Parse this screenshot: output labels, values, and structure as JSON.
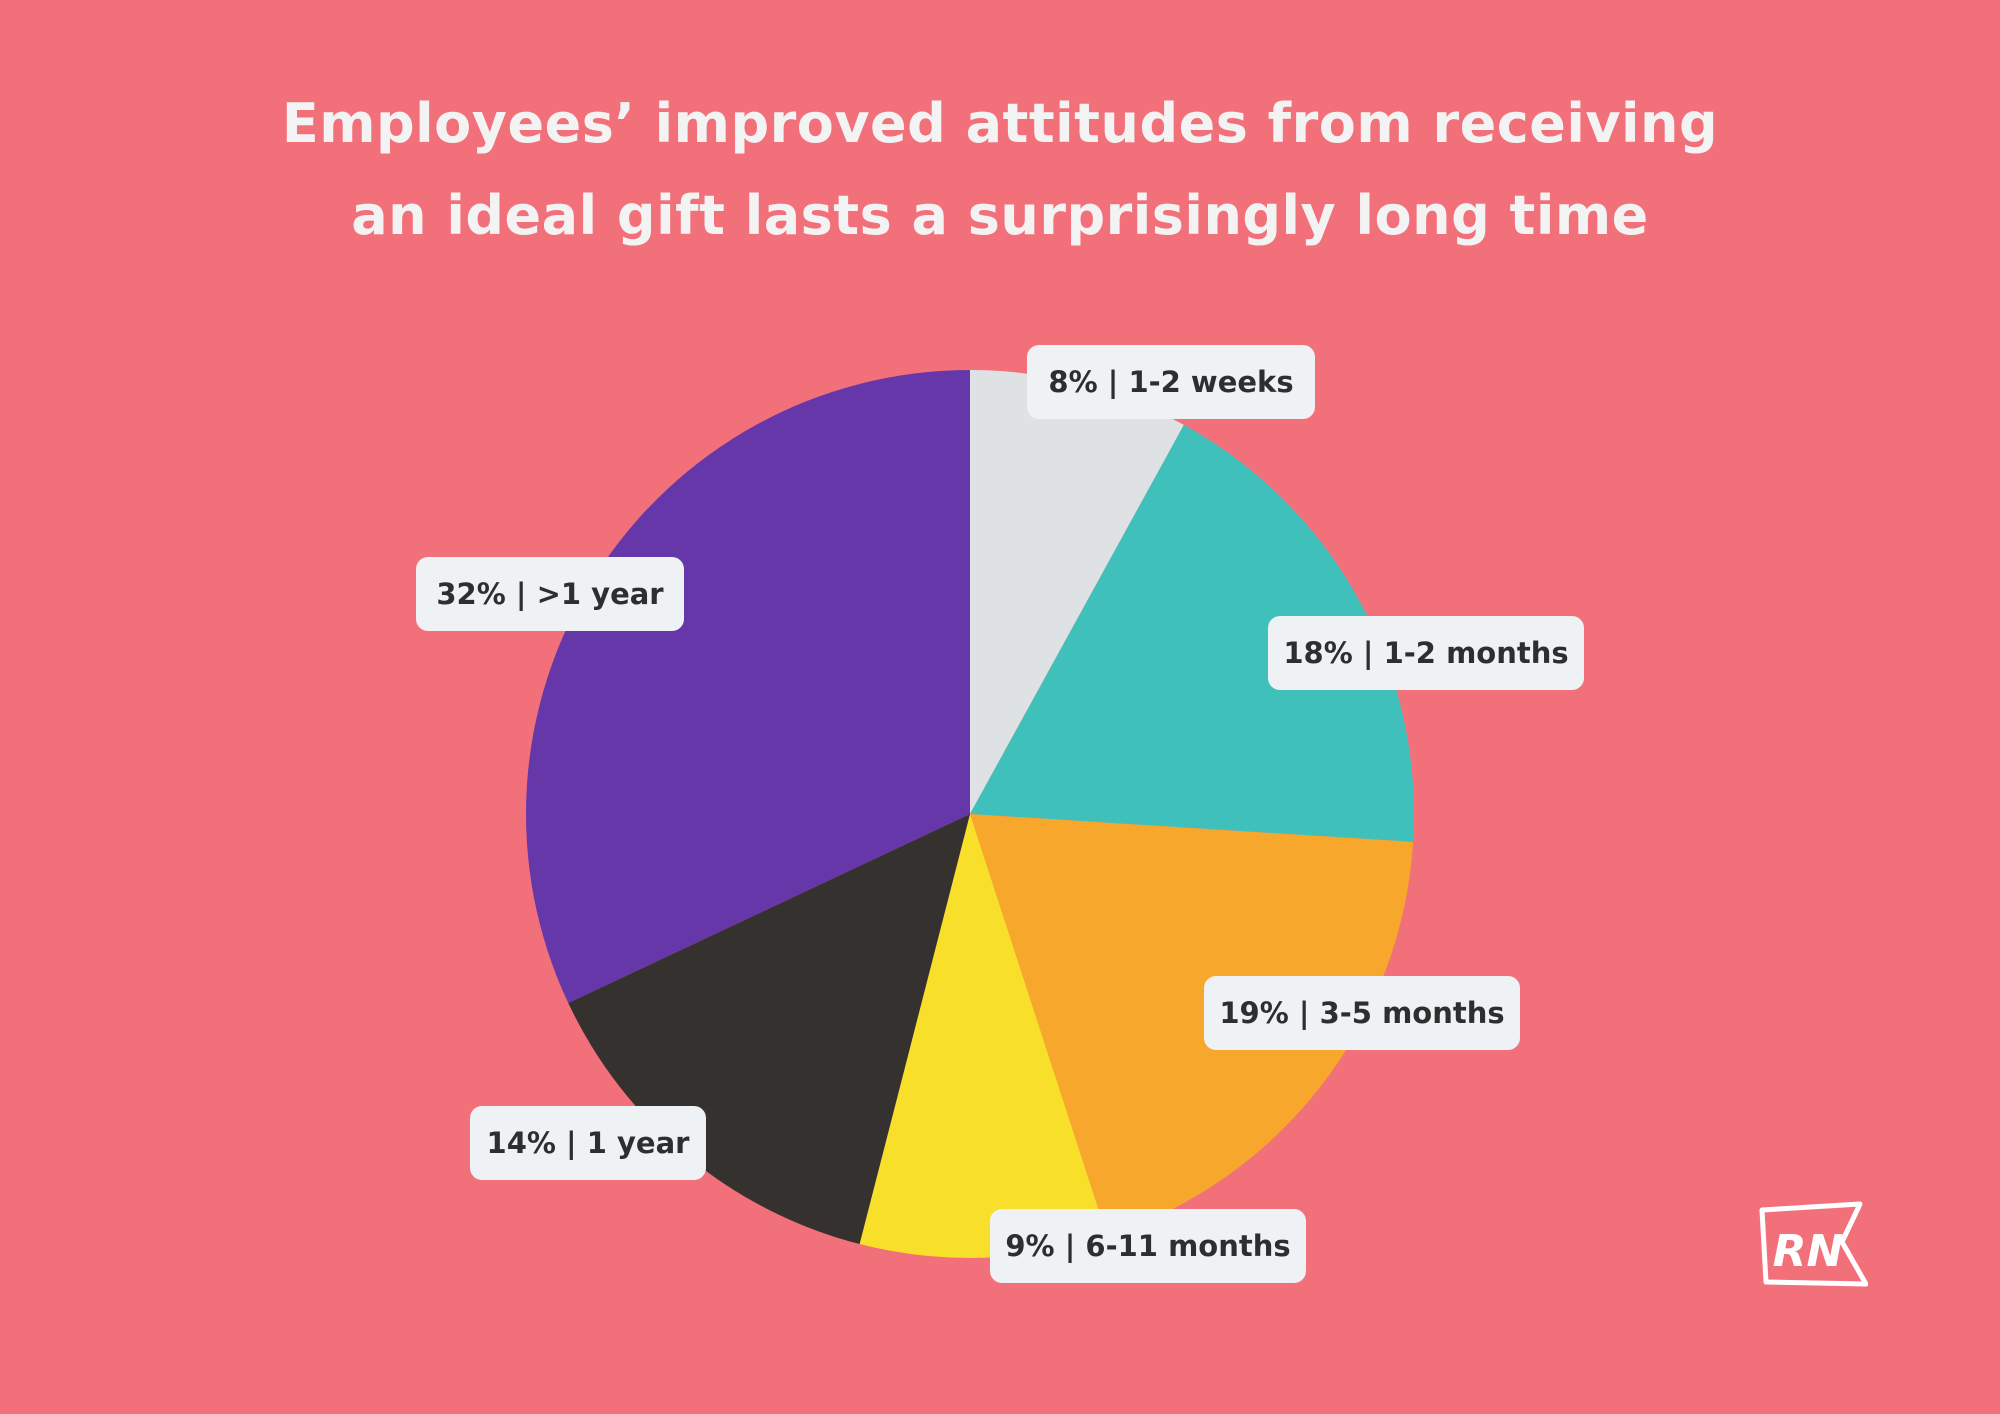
{
  "title_lines": [
    "Employees’ improved attitudes from receiving",
    "an ideal gift lasts a surprisingly long time"
  ],
  "logo_text": "RN",
  "colors": {
    "background": "#f2707a",
    "label_box": "#eef2f4",
    "label_text": "#2e2e2e",
    "title": "#f3f3f3"
  },
  "chart_data": {
    "type": "pie",
    "title": "Employees’ improved attitudes from receiving an ideal gift lasts a surprisingly long time",
    "start": "top (12 o'clock), clockwise",
    "slices": [
      {
        "label": "1-2 weeks",
        "value": 8,
        "color": "#dfe2e4"
      },
      {
        "label": "1-2 months",
        "value": 18,
        "color": "#3fc0bb"
      },
      {
        "label": "3-5 months",
        "value": 19,
        "color": "#f8a72d"
      },
      {
        "label": "6-11 months",
        "value": 9,
        "color": "#f8e02a"
      },
      {
        "label": "1 year",
        "value": 14,
        "color": "#35312f"
      },
      {
        "label": ">1 year",
        "value": 32,
        "color": "#6637a8"
      }
    ],
    "data_labels": [
      "8%",
      "18%",
      "19%",
      "9%",
      "14%",
      "32%"
    ]
  }
}
